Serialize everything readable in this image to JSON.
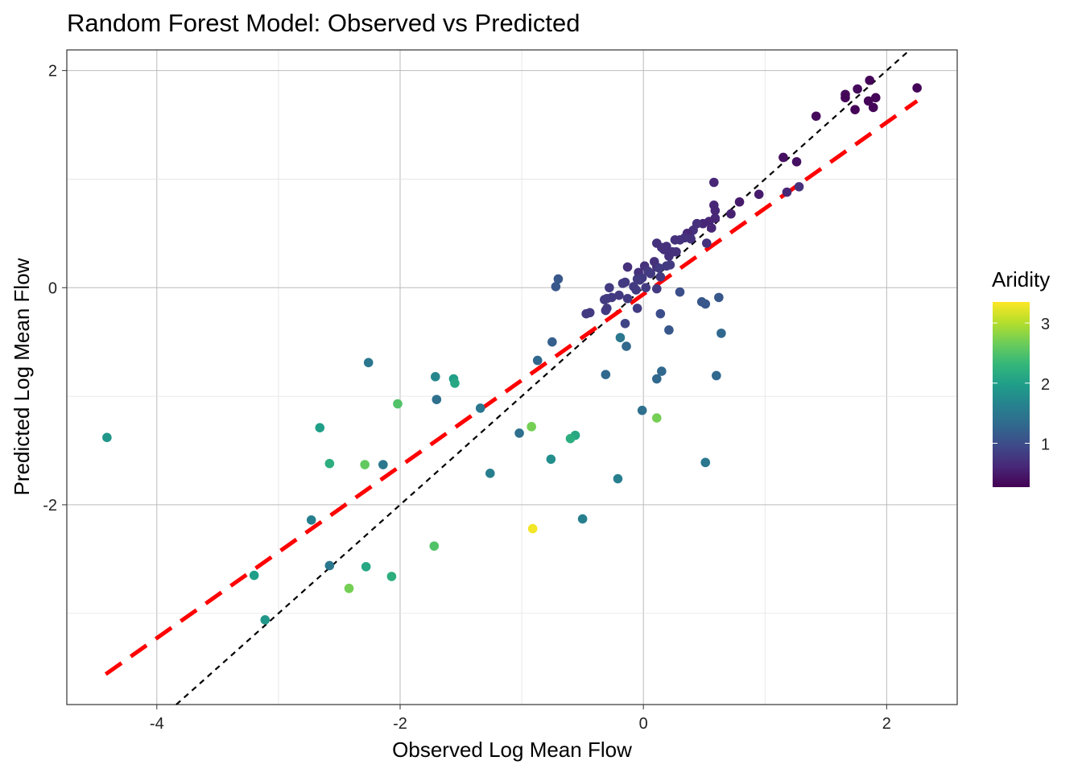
{
  "chart_data": {
    "type": "scatter",
    "title": "Random Forest Model: Observed vs Predicted",
    "xlabel": "Observed Log Mean Flow",
    "ylabel": "Predicted Log Mean Flow",
    "xlim": [
      -4.74,
      2.58
    ],
    "ylim": [
      -3.84,
      2.19
    ],
    "xticks": [
      -4,
      -2,
      0,
      2
    ],
    "yticks": [
      -2,
      0,
      2
    ],
    "grid": true,
    "legend": {
      "title": "Aridity",
      "position": "right",
      "ticks": [
        1,
        2,
        3
      ],
      "range": [
        0.27,
        3.35
      ],
      "palette": "viridis"
    },
    "identity_line": {
      "label": "y = x",
      "color": "#000000",
      "style": "dotted"
    },
    "fit_line": {
      "color": "#ff0000",
      "style": "dashed",
      "x": [
        -4.42,
        2.25
      ],
      "y": [
        -3.56,
        1.72
      ]
    },
    "points_format": [
      "observed",
      "predicted",
      "aridity"
    ],
    "points": [
      [
        2.25,
        1.84,
        0.3
      ],
      [
        1.86,
        1.91,
        0.3
      ],
      [
        1.76,
        1.83,
        0.35
      ],
      [
        1.66,
        1.78,
        0.35
      ],
      [
        1.66,
        1.75,
        0.3
      ],
      [
        1.91,
        1.75,
        0.3
      ],
      [
        1.85,
        1.72,
        0.3
      ],
      [
        1.74,
        1.64,
        0.3
      ],
      [
        1.89,
        1.66,
        0.3
      ],
      [
        1.42,
        1.58,
        0.35
      ],
      [
        1.15,
        1.2,
        0.4
      ],
      [
        1.26,
        1.16,
        0.4
      ],
      [
        0.58,
        0.97,
        0.6
      ],
      [
        1.18,
        0.88,
        0.6
      ],
      [
        1.28,
        0.93,
        0.7
      ],
      [
        0.95,
        0.86,
        0.5
      ],
      [
        0.79,
        0.79,
        0.5
      ],
      [
        0.72,
        0.68,
        0.55
      ],
      [
        0.58,
        0.76,
        0.6
      ],
      [
        0.59,
        0.71,
        0.6
      ],
      [
        0.59,
        0.64,
        0.6
      ],
      [
        0.54,
        0.61,
        0.6
      ],
      [
        0.49,
        0.59,
        0.6
      ],
      [
        0.44,
        0.59,
        0.7
      ],
      [
        0.41,
        0.53,
        0.7
      ],
      [
        0.38,
        0.49,
        0.7
      ],
      [
        0.36,
        0.5,
        0.6
      ],
      [
        0.39,
        0.45,
        0.7
      ],
      [
        0.52,
        0.41,
        0.7
      ],
      [
        0.56,
        0.55,
        0.6
      ],
      [
        0.34,
        0.46,
        0.7
      ],
      [
        0.3,
        0.44,
        0.7
      ],
      [
        0.26,
        0.44,
        0.7
      ],
      [
        0.19,
        0.38,
        0.7
      ],
      [
        0.21,
        0.29,
        0.7
      ],
      [
        0.24,
        0.33,
        0.7
      ],
      [
        0.27,
        0.33,
        0.7
      ],
      [
        0.22,
        0.21,
        0.8
      ],
      [
        0.11,
        0.41,
        0.7
      ],
      [
        0.15,
        0.37,
        0.7
      ],
      [
        0.17,
        0.35,
        0.7
      ],
      [
        0.09,
        0.24,
        0.7
      ],
      [
        0.11,
        0.19,
        0.7
      ],
      [
        0.19,
        0.2,
        0.8
      ],
      [
        0.13,
        0.18,
        0.8
      ],
      [
        0.01,
        0.2,
        0.7
      ],
      [
        -0.04,
        0.14,
        0.7
      ],
      [
        -0.05,
        0.08,
        0.8
      ],
      [
        -0.01,
        0.09,
        0.8
      ],
      [
        -0.13,
        0.19,
        0.7
      ],
      [
        -0.17,
        0.04,
        0.8
      ],
      [
        -0.15,
        0.05,
        0.8
      ],
      [
        -0.08,
        0.01,
        0.8
      ],
      [
        -0.03,
        0.07,
        0.8
      ],
      [
        0.04,
        0.15,
        0.8
      ],
      [
        0.06,
        0.13,
        0.8
      ],
      [
        0.14,
        0.1,
        0.8
      ],
      [
        0.11,
        -0.01,
        0.8
      ],
      [
        0.02,
        0.0,
        0.8
      ],
      [
        -0.06,
        -0.02,
        0.8
      ],
      [
        -0.13,
        -0.1,
        0.8
      ],
      [
        -0.2,
        -0.07,
        0.8
      ],
      [
        -0.26,
        -0.09,
        0.8
      ],
      [
        -0.28,
        0.0,
        0.8
      ],
      [
        -0.3,
        -0.1,
        0.8
      ],
      [
        -0.32,
        -0.11,
        0.8
      ],
      [
        -0.3,
        -0.19,
        0.8
      ],
      [
        -0.31,
        -0.21,
        0.8
      ],
      [
        -0.05,
        -0.19,
        0.8
      ],
      [
        -0.15,
        -0.33,
        0.9
      ],
      [
        -0.44,
        -0.23,
        0.8
      ],
      [
        -0.47,
        -0.24,
        0.8
      ],
      [
        -0.7,
        0.08,
        1.1
      ],
      [
        -0.72,
        0.01,
        1.1
      ],
      [
        0.3,
        -0.04,
        1.0
      ],
      [
        0.14,
        -0.24,
        1.0
      ],
      [
        0.51,
        -0.15,
        1.1
      ],
      [
        0.48,
        -0.13,
        1.1
      ],
      [
        0.62,
        -0.09,
        1.1
      ],
      [
        0.64,
        -0.42,
        1.3
      ],
      [
        0.21,
        -0.39,
        1.1
      ],
      [
        -0.19,
        -0.46,
        1.5
      ],
      [
        -0.14,
        -0.54,
        1.3
      ],
      [
        -0.75,
        -0.5,
        1.2
      ],
      [
        -0.87,
        -0.67,
        1.3
      ],
      [
        -0.31,
        -0.8,
        1.3
      ],
      [
        0.11,
        -0.84,
        1.3
      ],
      [
        0.15,
        -0.77,
        1.3
      ],
      [
        0.6,
        -0.81,
        1.3
      ],
      [
        -0.01,
        -1.13,
        1.4
      ],
      [
        0.11,
        -1.2,
        2.7
      ],
      [
        0.51,
        -1.61,
        1.5
      ],
      [
        -0.21,
        -1.76,
        1.6
      ],
      [
        -0.5,
        -2.13,
        1.6
      ],
      [
        -0.56,
        -1.36,
        2.1
      ],
      [
        -0.6,
        -1.39,
        2.2
      ],
      [
        -0.76,
        -1.58,
        1.8
      ],
      [
        -0.92,
        -1.28,
        2.7
      ],
      [
        -1.02,
        -1.34,
        1.4
      ],
      [
        -1.26,
        -1.71,
        1.6
      ],
      [
        -0.91,
        -2.22,
        3.3
      ],
      [
        -1.34,
        -1.11,
        1.5
      ],
      [
        -1.71,
        -0.82,
        1.7
      ],
      [
        -1.7,
        -1.03,
        1.4
      ],
      [
        -1.56,
        -0.84,
        2.0
      ],
      [
        -1.55,
        -0.88,
        2.1
      ],
      [
        -2.02,
        -1.07,
        2.5
      ],
      [
        -2.26,
        -0.69,
        1.5
      ],
      [
        -2.66,
        -1.29,
        2.0
      ],
      [
        -2.58,
        -1.62,
        2.2
      ],
      [
        -2.14,
        -1.63,
        1.5
      ],
      [
        -2.29,
        -1.63,
        2.6
      ],
      [
        -2.73,
        -2.14,
        1.6
      ],
      [
        -2.58,
        -2.56,
        1.5
      ],
      [
        -2.28,
        -2.57,
        2.1
      ],
      [
        -2.07,
        -2.66,
        2.2
      ],
      [
        -2.42,
        -2.77,
        2.7
      ],
      [
        -3.2,
        -2.65,
        2.0
      ],
      [
        -3.11,
        -3.06,
        1.9
      ],
      [
        -1.72,
        -2.38,
        2.5
      ],
      [
        -4.41,
        -1.38,
        1.9
      ]
    ]
  }
}
